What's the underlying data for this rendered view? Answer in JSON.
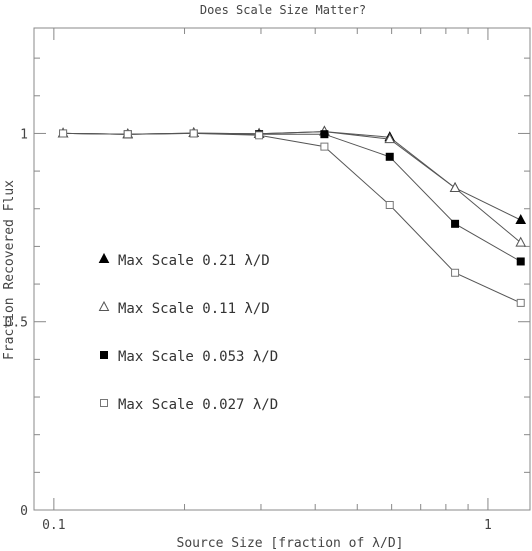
{
  "chart_data": {
    "type": "line",
    "title": "Does Scale Size Matter?",
    "xlabel": "Source Size [fraction of λ/D]",
    "ylabel": "Fraction Recovered Flux",
    "xscale": "log",
    "xlim": [
      0.09,
      1.25
    ],
    "ylim": [
      0,
      1.28
    ],
    "x_ticks": [
      {
        "value": 0.1,
        "label": "0.1"
      },
      {
        "value": 1,
        "label": "1"
      }
    ],
    "y_ticks": [
      {
        "value": 0,
        "label": "0"
      },
      {
        "value": 0.5,
        "label": "0.5"
      },
      {
        "value": 1,
        "label": "1"
      }
    ],
    "x": [
      0.105,
      0.148,
      0.21,
      0.297,
      0.42,
      0.594,
      0.84,
      1.19
    ],
    "series": [
      {
        "name": "Max Scale 0.21 λ/D",
        "marker": "filled-triangle",
        "values": [
          1.0,
          0.998,
          1.001,
          0.999,
          1.005,
          0.99,
          0.855,
          0.77
        ]
      },
      {
        "name": "Max Scale 0.11 λ/D",
        "marker": "open-triangle",
        "values": [
          1.0,
          0.998,
          1.001,
          0.999,
          1.005,
          0.985,
          0.855,
          0.71
        ]
      },
      {
        "name": "Max Scale 0.053 λ/D",
        "marker": "filled-square",
        "values": [
          1.0,
          0.998,
          1.0,
          0.998,
          0.998,
          0.938,
          0.76,
          0.66
        ]
      },
      {
        "name": "Max Scale 0.027 λ/D",
        "marker": "open-square",
        "values": [
          1.0,
          0.998,
          1.0,
          0.995,
          0.965,
          0.81,
          0.63,
          0.55
        ]
      }
    ],
    "legend_position": "left-middle",
    "grid": false,
    "colors": {
      "line": "#555555",
      "marker": "#000000",
      "frame": "#888888"
    }
  }
}
